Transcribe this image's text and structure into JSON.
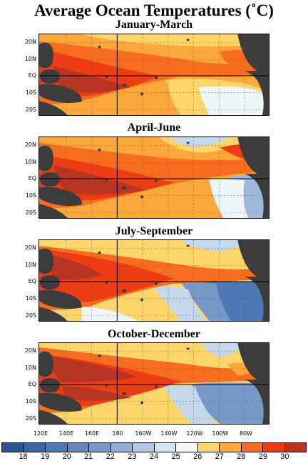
{
  "title": "Average Ocean Temperatures (˚C)",
  "panels": [
    {
      "name": "January-March"
    },
    {
      "name": "April-June"
    },
    {
      "name": "July-September"
    },
    {
      "name": "October-December"
    }
  ],
  "lat_labels": [
    "20N",
    "10N",
    "EQ",
    "10S",
    "20S"
  ],
  "lon_labels": [
    "120E",
    "140E",
    "160E",
    "180",
    "160W",
    "140W",
    "120W",
    "100W",
    "80W"
  ],
  "colorbar": {
    "labels": [
      "18",
      "19",
      "20",
      "21",
      "22",
      "23",
      "24",
      "25",
      "26",
      "27",
      "28",
      "29",
      "30"
    ],
    "colors": [
      "#2c5293",
      "#3a66a8",
      "#4c79b6",
      "#6189c0",
      "#7898c8",
      "#93aed5",
      "#b3c6e2",
      "#d4e4f0",
      "#f2f8f8",
      "#fdd66b",
      "#fba73a",
      "#f66d1f",
      "#ed3a12",
      "#c2301b"
    ]
  },
  "colors": {
    "land": "#3c3c3c",
    "c30": "#b83524",
    "c29": "#ee3c14",
    "c28": "#f66d1f",
    "c27": "#fba73a",
    "c26": "#fdd66b",
    "c25": "#eef6f7",
    "c24": "#c5d7ea",
    "c23": "#9fb8db",
    "c22": "#7898c8",
    "c20": "#4c79b6",
    "c18": "#2c5293"
  }
}
